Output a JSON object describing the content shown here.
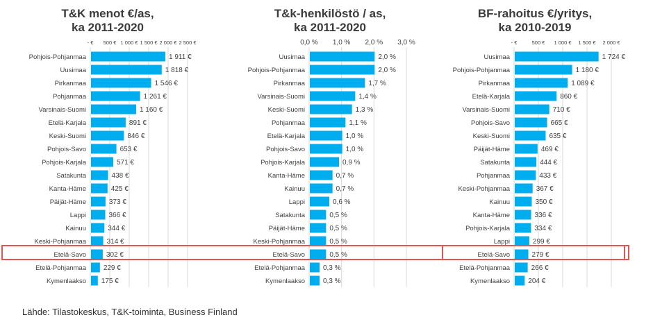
{
  "chart_data": [
    {
      "type": "bar",
      "orientation": "horizontal",
      "title": "T&K menot €/as,\nka 2011-2020",
      "tick_labels": [
        "- €",
        "500 €",
        "1 000 €",
        "1 500 €",
        "2 000 €",
        "2 500 €"
      ],
      "xlim": [
        0,
        2500
      ],
      "grid": true,
      "categories": [
        "Pohjois-Pohjanmaa",
        "Uusimaa",
        "Pirkanmaa",
        "Pohjanmaa",
        "Varsinais-Suomi",
        "Etelä-Karjala",
        "Keski-Suomi",
        "Pohjois-Savo",
        "Pohjois-Karjala",
        "Satakunta",
        "Kanta-Häme",
        "Päijät-Häme",
        "Lappi",
        "Kainuu",
        "Keski-Pohjanmaa",
        "Etelä-Savo",
        "Etelä-Pohjanmaa",
        "Kymenlaakso"
      ],
      "values": [
        1911,
        1818,
        1546,
        1261,
        1160,
        891,
        846,
        653,
        571,
        438,
        425,
        373,
        366,
        344,
        314,
        302,
        229,
        175
      ],
      "value_labels": [
        "1 911 €",
        "1 818 €",
        "1 546 €",
        "1 261 €",
        "1 160 €",
        "891 €",
        "846 €",
        "653 €",
        "571 €",
        "438 €",
        "425 €",
        "373 €",
        "366 €",
        "344 €",
        "314 €",
        "302 €",
        "229 €",
        "175 €"
      ],
      "highlight": "Etelä-Savo"
    },
    {
      "type": "bar",
      "orientation": "horizontal",
      "title": "T&k-henkilöstö / as,\nka 2011-2020",
      "tick_labels": [
        "0,0 %",
        "1,0 %",
        "2,0 %",
        "3,0 %"
      ],
      "xlim": [
        0,
        3.0
      ],
      "grid": true,
      "categories": [
        "Uusimaa",
        "Pohjois-Pohjanmaa",
        "Pirkanmaa",
        "Varsinais-Suomi",
        "Keski-Suomi",
        "Pohjanmaa",
        "Etelä-Karjala",
        "Pohjois-Savo",
        "Pohjois-Karjala",
        "Kanta-Häme",
        "Kainuu",
        "Lappi",
        "Satakunta",
        "Päijät-Häme",
        "Keski-Pohjanmaa",
        "Etelä-Savo",
        "Etelä-Pohjanmaa",
        "Kymenlaakso"
      ],
      "values": [
        2.0,
        2.0,
        1.7,
        1.4,
        1.3,
        1.1,
        1.0,
        1.0,
        0.9,
        0.7,
        0.7,
        0.6,
        0.5,
        0.5,
        0.5,
        0.5,
        0.3,
        0.3
      ],
      "value_labels": [
        "2,0 %",
        "2,0 %",
        "1,7 %",
        "1,4 %",
        "1,3 %",
        "1,1 %",
        "1,0 %",
        "1,0 %",
        "0,9 %",
        "0,7 %",
        "0,7 %",
        "0,6 %",
        "0,5 %",
        "0,5 %",
        "0,5 %",
        "0,5 %",
        "0,3 %",
        "0,3 %"
      ],
      "highlight": "Etelä-Savo"
    },
    {
      "type": "bar",
      "orientation": "horizontal",
      "title": "BF-rahoitus €/yritys,\nka 2010-2019",
      "tick_labels": [
        "- €",
        "500 €",
        "1 000 €",
        "1 500 €",
        "2 000 €"
      ],
      "xlim": [
        0,
        2000
      ],
      "grid": true,
      "categories": [
        "Uusimaa",
        "Pohjois-Pohjanmaa",
        "Pirkanmaa",
        "Etelä-Karjala",
        "Varsinais-Suomi",
        "Pohjois-Savo",
        "Keski-Suomi",
        "Päijät-Häme",
        "Satakunta",
        "Pohjanmaa",
        "Keski-Pohjanmaa",
        "Kainuu",
        "Kanta-Häme",
        "Pohjois-Karjala",
        "Lappi",
        "Etelä-Savo",
        "Etelä-Pohjanmaa",
        "Kymenlaakso"
      ],
      "values": [
        1724,
        1180,
        1089,
        860,
        710,
        665,
        635,
        469,
        444,
        433,
        367,
        350,
        336,
        334,
        299,
        279,
        266,
        204
      ],
      "value_labels": [
        "1 724 €",
        "1 180 €",
        "1 089 €",
        "860 €",
        "710 €",
        "665 €",
        "635 €",
        "469 €",
        "444 €",
        "433 €",
        "367 €",
        "350 €",
        "336 €",
        "334 €",
        "299 €",
        "279 €",
        "266 €",
        "204 €"
      ],
      "highlight": "Etelä-Savo"
    }
  ],
  "colors": {
    "bar": "#00aeef",
    "highlight_border": "#e8534f",
    "grid": "#d9d9d9",
    "text": "#404040",
    "title": "#3b3b3b"
  },
  "source": "Lähde: Tilastokeskus, T&K-toiminta, Business Finland"
}
